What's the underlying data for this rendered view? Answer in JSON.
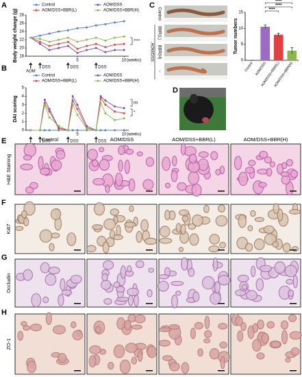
{
  "panel_labels": [
    "A",
    "B",
    "C",
    "D",
    "E",
    "F",
    "G",
    "H"
  ],
  "chart_data": [
    {
      "type": "line",
      "y_label": "Body weight change (g)",
      "x_label": "(weeks)",
      "x": [
        0,
        1,
        2,
        3,
        4,
        5,
        6,
        7,
        8,
        9,
        10
      ],
      "xlim": [
        -0.5,
        10.5
      ],
      "xticks": [
        5,
        10
      ],
      "ylim": [
        18,
        28
      ],
      "yticks": [
        18,
        20,
        22,
        24,
        26,
        28
      ],
      "series": [
        {
          "name": "Control",
          "color": "#4a7fd4",
          "values": [
            22.5,
            23,
            23.5,
            24,
            24.3,
            24.8,
            25,
            25.5,
            25.8,
            26.2,
            26.5
          ]
        },
        {
          "name": "AOM/DSS",
          "color": "#7b4fa0",
          "values": [
            22.5,
            21,
            19.5,
            20,
            20.5,
            18.8,
            19.5,
            20,
            19,
            19.5,
            19.5
          ]
        },
        {
          "name": "AOM/DSS+BBR(L)",
          "color": "#e04040",
          "values": [
            22.5,
            21.5,
            20.5,
            21,
            21.5,
            19.8,
            20.5,
            21,
            20.2,
            20.8,
            21
          ]
        },
        {
          "name": "AOM/DSS+BBR(H)",
          "color": "#8ab84a",
          "values": [
            22.5,
            22.2,
            21.5,
            22,
            22.5,
            21.5,
            22,
            22.5,
            21.8,
            22.5,
            22.8
          ]
        }
      ],
      "events": [
        {
          "x": 0,
          "label": "AOM"
        },
        {
          "x": 1,
          "label": "DSS"
        },
        {
          "x": 4,
          "label": "DSS"
        },
        {
          "x": 7,
          "label": "DSS"
        }
      ],
      "annotations": [
        "****"
      ]
    },
    {
      "type": "line",
      "y_label": "DAI scoring",
      "x_label": "(weeks)",
      "x": [
        0,
        1,
        1.5,
        2,
        3,
        4,
        4.5,
        5,
        6,
        7,
        7.5,
        8,
        9,
        10
      ],
      "xlim": [
        -0.5,
        10.5
      ],
      "xticks": [
        5,
        10
      ],
      "ylim": [
        0,
        5
      ],
      "yticks": [
        0,
        1,
        2,
        3,
        4,
        5
      ],
      "series": [
        {
          "name": "Control",
          "color": "#4a7fd4",
          "values": [
            0,
            0,
            0,
            0,
            0,
            0,
            0,
            0,
            0,
            0,
            0,
            0,
            0,
            0
          ]
        },
        {
          "name": "AOM/DSS",
          "color": "#7b4fa0",
          "values": [
            0,
            0,
            3.6,
            2.5,
            0.3,
            0,
            4,
            3,
            0.5,
            0,
            4,
            3.5,
            2.8,
            2.6
          ]
        },
        {
          "name": "AOM/DSS+BBR(L)",
          "color": "#e04040",
          "values": [
            0,
            0,
            3.2,
            2.2,
            0.2,
            0,
            3.5,
            2.5,
            0.3,
            0,
            3.8,
            3,
            2.2,
            2
          ]
        },
        {
          "name": "AOM/DSS+BBR(H)",
          "color": "#8ab84a",
          "values": [
            0,
            0,
            3,
            1.5,
            0.5,
            0,
            3,
            1.8,
            0.2,
            0,
            3.2,
            2,
            1.2,
            1.4
          ]
        }
      ],
      "events": [
        {
          "x": 0,
          "label": "AOM"
        },
        {
          "x": 1,
          "label": "DSS"
        },
        {
          "x": 4,
          "label": "DSS"
        },
        {
          "x": 7,
          "label": "DSS"
        }
      ],
      "annotations": [
        "ns",
        "*"
      ]
    },
    {
      "type": "bar",
      "y_label": "Tumor numbers",
      "categories": [
        "Control",
        "AOM/DSS",
        "AOM/DSS+BBR(L)",
        "AOM/DSS+BBR(H)"
      ],
      "values": [
        0,
        10.5,
        8,
        3
      ],
      "errors": [
        0,
        0.5,
        0.5,
        1
      ],
      "colors": [
        "#4a7fd4",
        "#9b6bc8",
        "#e04040",
        "#8ab84a"
      ],
      "ylim": [
        0,
        15
      ],
      "yticks": [
        0,
        5,
        10,
        15
      ],
      "annotations": [
        "****",
        "****",
        "****"
      ]
    }
  ],
  "colon_photos": {
    "labels": [
      "Control",
      "BBR(L)",
      "BBR(H)",
      "-"
    ],
    "group_label": "AOM/DSS"
  },
  "histology": {
    "columns": [
      "Control",
      "AOM/DSS",
      "AOM/DSS+BBR(L)",
      "AOM/DSS+BBR(H)"
    ],
    "rows": [
      "H&E Staining",
      "Ki67",
      "Occludin",
      "ZO-1"
    ]
  }
}
